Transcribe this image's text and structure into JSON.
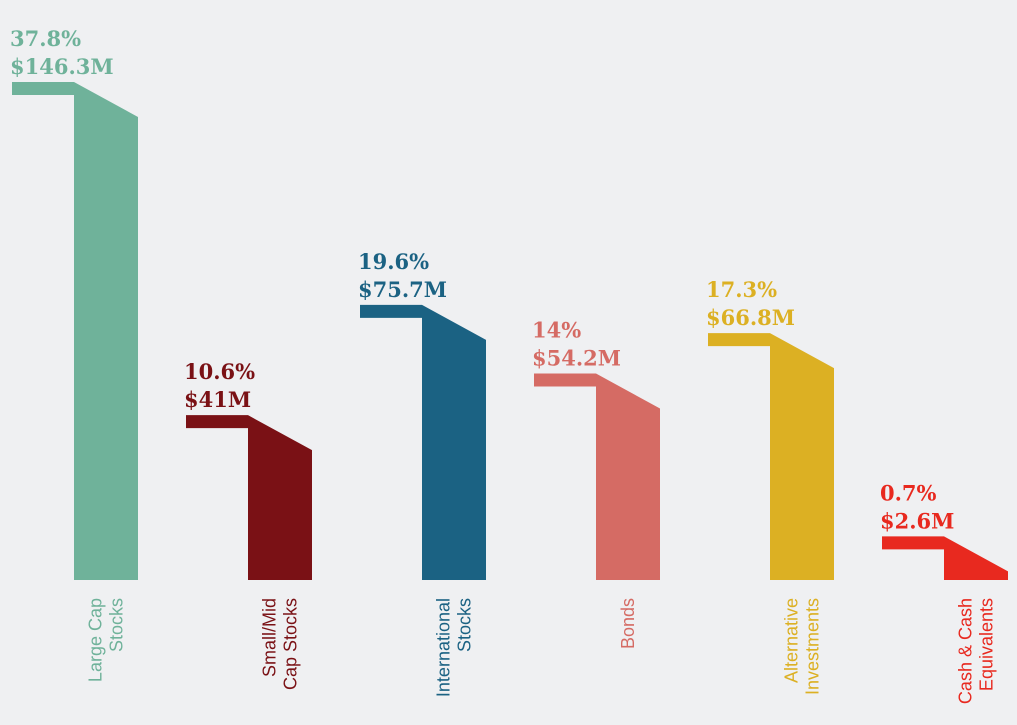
{
  "chart_data": {
    "type": "bar",
    "categories": [
      [
        "Large Cap",
        "Stocks"
      ],
      [
        "Small/Mid",
        "Cap Stocks"
      ],
      [
        "International",
        "Stocks"
      ],
      [
        "Bonds"
      ],
      [
        "Alternative",
        "Investments"
      ],
      [
        "Cash & Cash",
        "Equivalents"
      ]
    ],
    "values": [
      37.8,
      10.6,
      19.6,
      14,
      17.3,
      0.7
    ],
    "value_labels": [
      "37.8%",
      "10.6%",
      "19.6%",
      "14%",
      "17.3%",
      "0.7%"
    ],
    "amounts": [
      146300000,
      41000000,
      75700000,
      54200000,
      66800000,
      2600000
    ],
    "amount_labels": [
      "$146.3M",
      "$41M",
      "$75.7M",
      "$54.2M",
      "$66.8M",
      "$2.6M"
    ],
    "colors": [
      "#6fb29a",
      "#7a1115",
      "#1b6283",
      "#d56b64",
      "#dcb023",
      "#e8291f"
    ]
  }
}
